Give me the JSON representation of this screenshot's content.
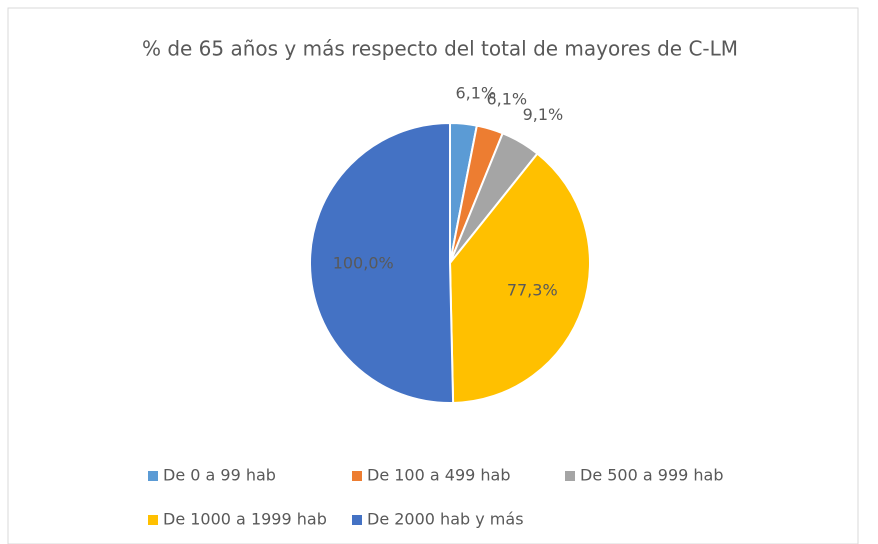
{
  "chart_data": {
    "type": "pie",
    "title": "% de 65 años y más respecto del total de mayores de C-LM",
    "categories": [
      "De 0 a 99 hab",
      "De 100 a 499 hab",
      "De 500 a 999 hab",
      "De 1000 a 1999 hab",
      "De 2000 hab y más"
    ],
    "values": [
      6.1,
      6.1,
      9.1,
      77.3,
      100.0
    ],
    "value_labels": [
      "6,1%",
      "6,1%",
      "9,1%",
      "77,3%",
      "100,0%"
    ],
    "colors": [
      "#5b9bd5",
      "#ed7d31",
      "#a5a5a5",
      "#ffc000",
      "#4472c4"
    ],
    "legend": "bottom"
  }
}
